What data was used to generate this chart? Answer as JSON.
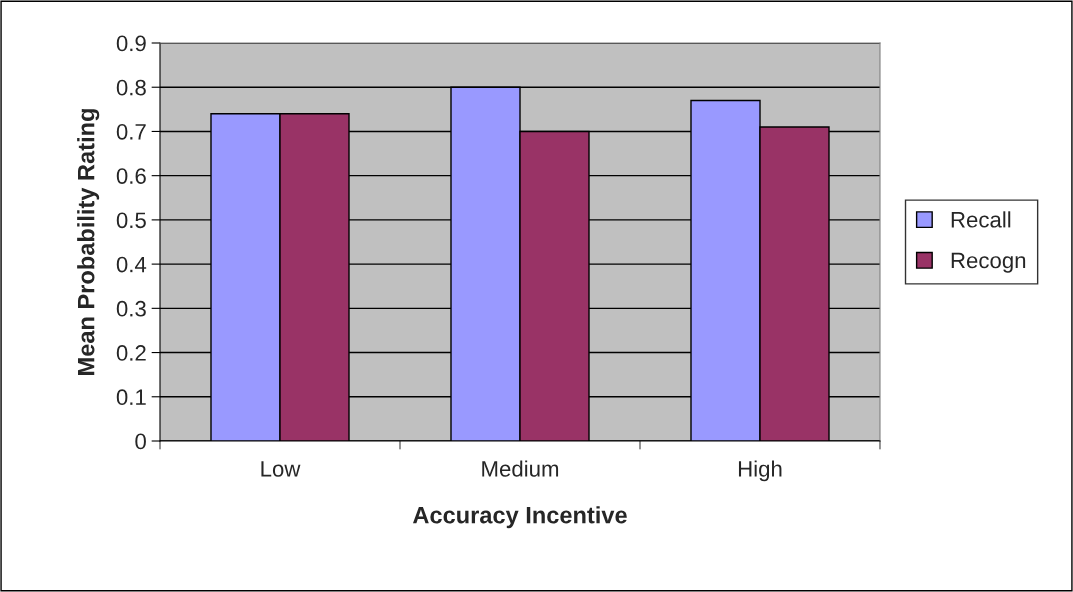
{
  "chart_data": {
    "type": "bar",
    "xlabel": "Accuracy Incentive",
    "ylabel": "Mean Probability Rating",
    "categories": [
      "Low",
      "Medium",
      "High"
    ],
    "series": [
      {
        "name": "Recall",
        "color": "#9999ff",
        "values": [
          0.74,
          0.8,
          0.77
        ]
      },
      {
        "name": "Recogn",
        "color": "#993366",
        "values": [
          0.74,
          0.7,
          0.71
        ]
      }
    ],
    "ylim": [
      0,
      0.9
    ],
    "yticks": [
      0,
      0.1,
      0.2,
      0.3,
      0.4,
      0.5,
      0.6,
      0.7,
      0.8,
      0.9
    ],
    "grid": "y",
    "legend": "right"
  }
}
